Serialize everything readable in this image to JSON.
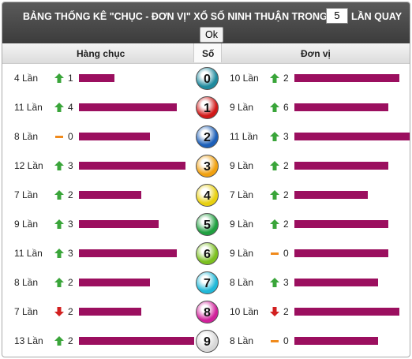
{
  "header": {
    "title": "BẢNG THỐNG KÊ \"CHỤC - ĐƠN VỊ\" XỔ SỐ NINH THUẬN TRONG",
    "input": "5",
    "suffix": "LẦN QUAY",
    "button": "Ok"
  },
  "columns": {
    "tens": "Hàng chục",
    "digit": "Số",
    "units": "Đơn vị"
  },
  "bar_color": "#9b0f5f",
  "rows": [
    {
      "digit": "0",
      "color": "#1f8a9e",
      "tens": {
        "count": {
          "value": 4,
          "label": "4 Lần"
        },
        "trend": "up",
        "change": 1
      },
      "units": {
        "count": {
          "value": 10,
          "label": "10 Lần"
        },
        "trend": "up",
        "change": 2
      }
    },
    {
      "digit": "1",
      "color": "#d01818",
      "tens": {
        "count": {
          "value": 11,
          "label": "11 Lần"
        },
        "trend": "up",
        "change": 4
      },
      "units": {
        "count": {
          "value": 9,
          "label": "9 Lần"
        },
        "trend": "up",
        "change": 6
      }
    },
    {
      "digit": "2",
      "color": "#1c5fb8",
      "tens": {
        "count": {
          "value": 8,
          "label": "8 Lần"
        },
        "trend": "flat",
        "change": 0
      },
      "units": {
        "count": {
          "value": 11,
          "label": "11 Lần"
        },
        "trend": "up",
        "change": 3
      }
    },
    {
      "digit": "3",
      "color": "#f0a010",
      "tens": {
        "count": {
          "value": 12,
          "label": "12 Lần"
        },
        "trend": "up",
        "change": 3
      },
      "units": {
        "count": {
          "value": 9,
          "label": "9 Lần"
        },
        "trend": "up",
        "change": 2
      }
    },
    {
      "digit": "4",
      "color": "#e8d010",
      "tens": {
        "count": {
          "value": 7,
          "label": "7 Lần"
        },
        "trend": "up",
        "change": 2
      },
      "units": {
        "count": {
          "value": 7,
          "label": "7 Lần"
        },
        "trend": "up",
        "change": 2
      }
    },
    {
      "digit": "5",
      "color": "#20a040",
      "tens": {
        "count": {
          "value": 9,
          "label": "9 Lần"
        },
        "trend": "up",
        "change": 3
      },
      "units": {
        "count": {
          "value": 9,
          "label": "9 Lần"
        },
        "trend": "up",
        "change": 2
      }
    },
    {
      "digit": "6",
      "color": "#7cc020",
      "tens": {
        "count": {
          "value": 11,
          "label": "11 Lần"
        },
        "trend": "up",
        "change": 3
      },
      "units": {
        "count": {
          "value": 9,
          "label": "9 Lần"
        },
        "trend": "flat",
        "change": 0
      }
    },
    {
      "digit": "7",
      "color": "#20b8d8",
      "tens": {
        "count": {
          "value": 8,
          "label": "8 Lần"
        },
        "trend": "up",
        "change": 2
      },
      "units": {
        "count": {
          "value": 8,
          "label": "8 Lần"
        },
        "trend": "up",
        "change": 3
      }
    },
    {
      "digit": "8",
      "color": "#d0209a",
      "tens": {
        "count": {
          "value": 7,
          "label": "7 Lần"
        },
        "trend": "down",
        "change": 2
      },
      "units": {
        "count": {
          "value": 10,
          "label": "10 Lần"
        },
        "trend": "down",
        "change": 2
      }
    },
    {
      "digit": "9",
      "color": "#d8d8d8",
      "tens": {
        "count": {
          "value": 13,
          "label": "13 Lần"
        },
        "trend": "up",
        "change": 2
      },
      "units": {
        "count": {
          "value": 8,
          "label": "8 Lần"
        },
        "trend": "flat",
        "change": 0
      }
    }
  ]
}
